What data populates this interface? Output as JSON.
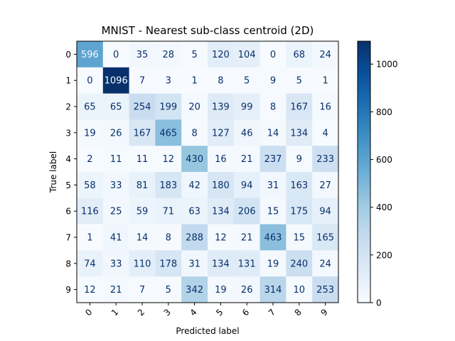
{
  "chart_data": {
    "type": "heatmap",
    "title": "MNIST - Nearest sub-class centroid (2D)",
    "xlabel": "Predicted label",
    "ylabel": "True label",
    "x_categories": [
      "0",
      "1",
      "2",
      "3",
      "4",
      "5",
      "6",
      "7",
      "8",
      "9"
    ],
    "y_categories": [
      "0",
      "1",
      "2",
      "3",
      "4",
      "5",
      "6",
      "7",
      "8",
      "9"
    ],
    "matrix": [
      [
        596,
        0,
        35,
        28,
        5,
        120,
        104,
        0,
        68,
        24
      ],
      [
        0,
        1096,
        7,
        3,
        1,
        8,
        5,
        9,
        5,
        1
      ],
      [
        65,
        65,
        254,
        199,
        20,
        139,
        99,
        8,
        167,
        16
      ],
      [
        19,
        26,
        167,
        465,
        8,
        127,
        46,
        14,
        134,
        4
      ],
      [
        2,
        11,
        11,
        12,
        430,
        16,
        21,
        237,
        9,
        233
      ],
      [
        58,
        33,
        81,
        183,
        42,
        180,
        94,
        31,
        163,
        27
      ],
      [
        116,
        25,
        59,
        71,
        63,
        134,
        206,
        15,
        175,
        94
      ],
      [
        1,
        41,
        14,
        8,
        288,
        12,
        21,
        463,
        15,
        165
      ],
      [
        74,
        33,
        110,
        178,
        31,
        134,
        131,
        19,
        240,
        24
      ],
      [
        12,
        21,
        7,
        5,
        342,
        19,
        26,
        314,
        10,
        253
      ]
    ],
    "colormap": "Blues",
    "colorbar": {
      "range": [
        0,
        1096
      ],
      "ticks": [
        0,
        200,
        400,
        600,
        800,
        1000
      ]
    },
    "x_tick_rotation": 45,
    "grid": false
  }
}
